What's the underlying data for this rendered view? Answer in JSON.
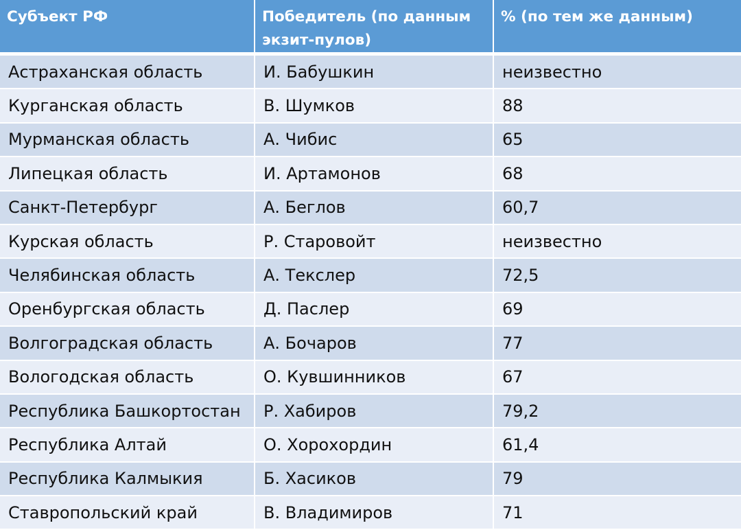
{
  "table": {
    "headers": [
      "Субъект РФ",
      "Победитель (по данным экзит-пулов)",
      "% (по тем же данным)"
    ],
    "rows": [
      [
        "Астраханская область",
        "И. Бабушкин",
        "неизвестно"
      ],
      [
        "Курганская область",
        "В. Шумков",
        "88"
      ],
      [
        "Мурманская область",
        "А. Чибис",
        "65"
      ],
      [
        "Липецкая область",
        "И. Артамонов",
        "68"
      ],
      [
        "Санкт-Петербург",
        "А. Беглов",
        "60,7"
      ],
      [
        "Курская область",
        "Р. Старовойт",
        "неизвестно"
      ],
      [
        "Челябинская область",
        "А. Текслер",
        "72,5"
      ],
      [
        "Оренбургская область",
        "Д. Паслер",
        "69"
      ],
      [
        "Волгоградская область",
        "А. Бочаров",
        "77"
      ],
      [
        "Вологодская область",
        "О. Кувшинников",
        "67"
      ],
      [
        "Республика Башкортостан",
        "Р. Хабиров",
        "79,2"
      ],
      [
        "Республика Алтай",
        "О. Хорохордин",
        "61,4"
      ],
      [
        "Республика Калмыкия",
        "Б. Хасиков",
        "79"
      ],
      [
        "Ставропольский край",
        "В. Владимиров",
        "71"
      ]
    ]
  },
  "colors": {
    "header_bg": "#5b9bd5",
    "row_odd": "#cfdbec",
    "row_even": "#e9eef7"
  }
}
